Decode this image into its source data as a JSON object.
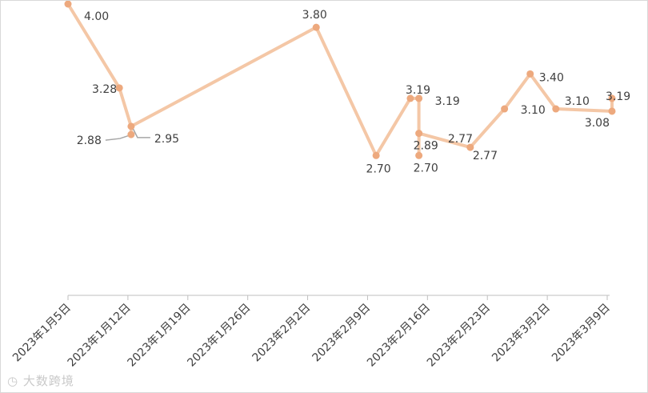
{
  "chart_data": {
    "type": "line",
    "title": "",
    "xlabel": "",
    "ylabel": "",
    "x_axis_type": "date",
    "xlim": [
      "2023-01-05",
      "2023-03-09"
    ],
    "ylim": [
      1.5,
      4.0
    ],
    "y_axis_visible": false,
    "grid": false,
    "legend": "none",
    "line_color": "#f4c7a6",
    "marker_color": "#eda97e",
    "label_color": "#404040",
    "leader_line_color": "#a6a6a6",
    "ticks": [
      {
        "date": "2023-01-05",
        "label": "2023年1月5日"
      },
      {
        "date": "2023-01-12",
        "label": "2023年1月12日"
      },
      {
        "date": "2023-01-19",
        "label": "2023年1月19日"
      },
      {
        "date": "2023-01-26",
        "label": "2023年1月26日"
      },
      {
        "date": "2023-02-02",
        "label": "2023年2月2日"
      },
      {
        "date": "2023-02-09",
        "label": "2023年2月9日"
      },
      {
        "date": "2023-02-16",
        "label": "2023年2月16日"
      },
      {
        "date": "2023-02-23",
        "label": "2023年2月23日"
      },
      {
        "date": "2023-03-02",
        "label": "2023年3月2日"
      },
      {
        "date": "2023-03-09",
        "label": "2023年3月9日"
      }
    ],
    "points": [
      {
        "x": "2023-01-05",
        "y": 4.0,
        "label": "4.00"
      },
      {
        "x": "2023-01-11",
        "y": 3.28,
        "label": "3.28"
      },
      {
        "x": "2023-01-12",
        "y": 2.88,
        "label": "2.88"
      },
      {
        "x": "2023-01-12",
        "y": 2.95,
        "label": "2.95"
      },
      {
        "x": "2023-02-03",
        "y": 3.8,
        "label": "3.80"
      },
      {
        "x": "2023-02-10",
        "y": 2.7,
        "label": "2.70"
      },
      {
        "x": "2023-02-14",
        "y": 3.19,
        "label": "3.19"
      },
      {
        "x": "2023-02-15",
        "y": 3.19,
        "label": "3.19"
      },
      {
        "x": "2023-02-15",
        "y": 2.89,
        "label": "2.89"
      },
      {
        "x": "2023-02-15",
        "y": 2.7,
        "label": "2.70"
      },
      {
        "x": "2023-02-21",
        "y": 2.77,
        "label": "2.77"
      },
      {
        "x": "2023-02-25",
        "y": 3.1,
        "label": "3.10"
      },
      {
        "x": "2023-02-28",
        "y": 3.4,
        "label": "3.40"
      },
      {
        "x": "2023-03-03",
        "y": 3.1,
        "label": "3.10"
      },
      {
        "x": "2023-03-09",
        "y": 3.08,
        "label": "3.08"
      },
      {
        "x": "2023-03-09",
        "y": 3.19,
        "label": "3.19"
      }
    ],
    "line_order": [
      0,
      1,
      3,
      4,
      5,
      6,
      7,
      8,
      10,
      11,
      12,
      13,
      14,
      15
    ],
    "extra_segments": [
      [
        2,
        3
      ],
      [
        8,
        9
      ]
    ],
    "extra_labels": [
      {
        "text": "2.77",
        "near_point": 10
      }
    ]
  },
  "watermark": "大数跨境"
}
